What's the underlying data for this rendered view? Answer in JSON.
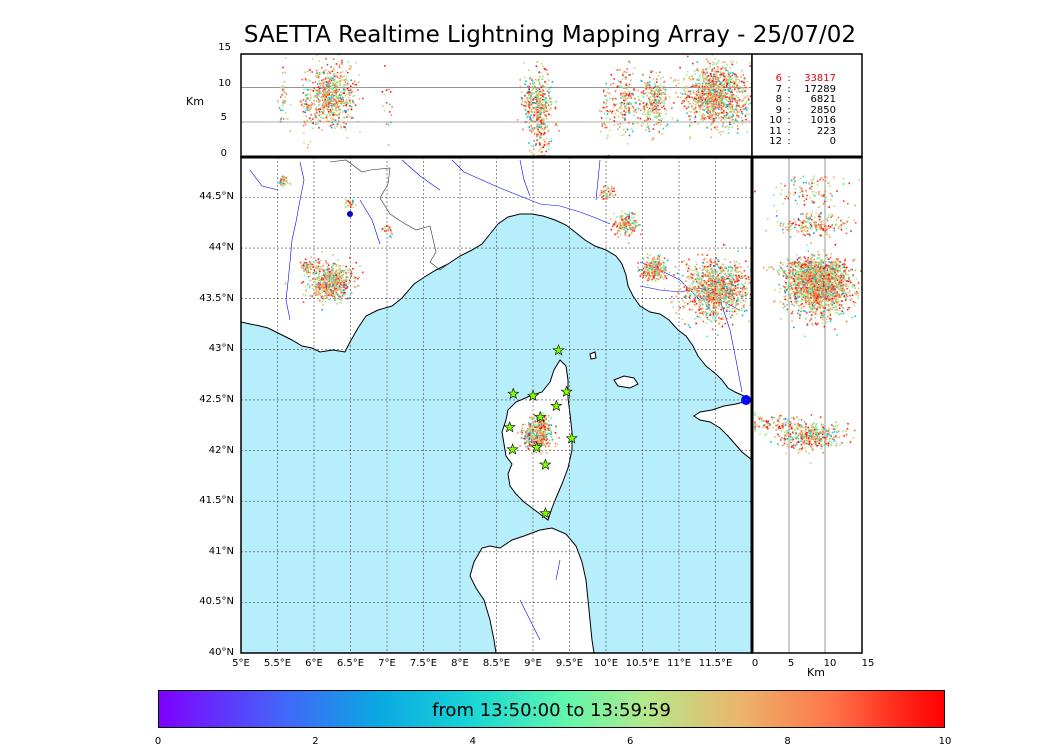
{
  "title": "SAETTA Realtime Lightning Mapping Array - 25/07/02",
  "altitude_panel": {
    "ylabel": "Km",
    "yticks": [
      "15",
      "10",
      "5",
      "0"
    ]
  },
  "side_panel": {
    "xlabel": "Km",
    "xticks": [
      "0",
      "5",
      "10",
      "15"
    ]
  },
  "map": {
    "lon_ticks": [
      "5°E",
      "5.5°E",
      "6°E",
      "6.5°E",
      "7°E",
      "7.5°E",
      "8°E",
      "8.5°E",
      "9°E",
      "9.5°E",
      "10°E",
      "10.5°E",
      "11°E",
      "11.5°E"
    ],
    "lat_ticks": [
      "44.5°N",
      "44°N",
      "43.5°N",
      "43°N",
      "42.5°N",
      "42°N",
      "41.5°N",
      "41°N",
      "40.5°N",
      "40°N"
    ],
    "sea_color": "#b7eefc",
    "land_color": "#ffffff",
    "river_color": "#0000ff",
    "station_marker": "star-icon",
    "station_color": "#7fff00",
    "stations": [
      {
        "lon": 9.35,
        "lat": 42.99
      },
      {
        "lon": 8.73,
        "lat": 42.56
      },
      {
        "lon": 9.0,
        "lat": 42.54
      },
      {
        "lon": 9.46,
        "lat": 42.58
      },
      {
        "lon": 9.32,
        "lat": 42.44
      },
      {
        "lon": 9.1,
        "lat": 42.33
      },
      {
        "lon": 8.68,
        "lat": 42.23
      },
      {
        "lon": 9.53,
        "lat": 42.12
      },
      {
        "lon": 8.72,
        "lat": 42.01
      },
      {
        "lon": 9.05,
        "lat": 42.03
      },
      {
        "lon": 9.17,
        "lat": 41.86
      },
      {
        "lon": 9.17,
        "lat": 41.38
      }
    ]
  },
  "stats": [
    {
      "alt": "6",
      "sep": ":",
      "count": "33817",
      "highlight": true
    },
    {
      "alt": "7",
      "sep": ":",
      "count": "17289",
      "highlight": false
    },
    {
      "alt": "8",
      "sep": ":",
      "count": "6821",
      "highlight": false
    },
    {
      "alt": "9",
      "sep": ":",
      "count": "2850",
      "highlight": false
    },
    {
      "alt": "10",
      "sep": ":",
      "count": "1016",
      "highlight": false
    },
    {
      "alt": "11",
      "sep": ":",
      "count": "223",
      "highlight": false
    },
    {
      "alt": "12",
      "sep": ":",
      "count": "0",
      "highlight": false
    }
  ],
  "colorbar": {
    "label": "from 13:50:00 to 13:59:59",
    "ticks": [
      "0",
      "2",
      "4",
      "6",
      "8",
      "10"
    ],
    "range": [
      0,
      10
    ]
  },
  "lightning_clusters": [
    {
      "lon": 5.57,
      "lat": 44.66,
      "alt": 9,
      "spread": 0.04,
      "n": 40
    },
    {
      "lon": 6.48,
      "lat": 44.45,
      "alt": 9,
      "spread": 0.03,
      "n": 25
    },
    {
      "lon": 6.22,
      "lat": 43.68,
      "alt": 9,
      "spread": 0.14,
      "n": 600
    },
    {
      "lon": 5.9,
      "lat": 43.82,
      "alt": 8,
      "spread": 0.05,
      "n": 60
    },
    {
      "lon": 7.0,
      "lat": 44.18,
      "alt": 7,
      "spread": 0.04,
      "n": 20
    },
    {
      "lon": 10.0,
      "lat": 44.55,
      "alt": 7,
      "spread": 0.05,
      "n": 50
    },
    {
      "lon": 10.27,
      "lat": 44.24,
      "alt": 8,
      "spread": 0.08,
      "n": 180
    },
    {
      "lon": 10.65,
      "lat": 43.8,
      "alt": 8,
      "spread": 0.09,
      "n": 260
    },
    {
      "lon": 11.5,
      "lat": 43.6,
      "alt": 9,
      "spread": 0.22,
      "n": 1100
    },
    {
      "lon": 9.05,
      "lat": 42.15,
      "alt": 8,
      "spread": 0.1,
      "n": 400
    },
    {
      "lon": 9.1,
      "lat": 42.28,
      "alt": 3,
      "spread": 0.07,
      "n": 90
    }
  ]
}
